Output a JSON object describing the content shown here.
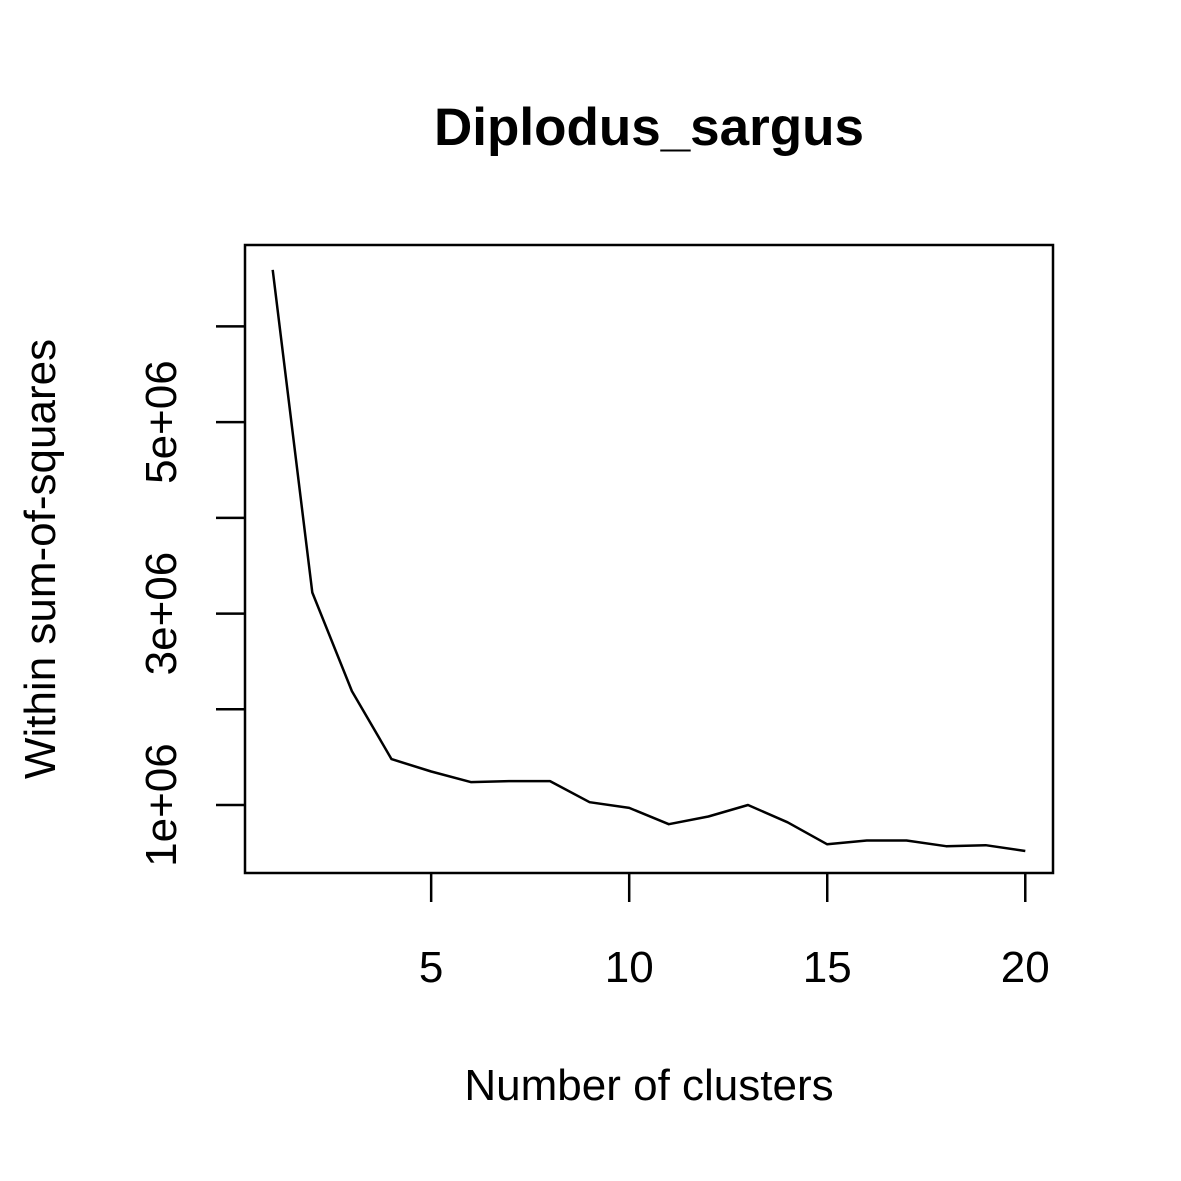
{
  "chart_data": {
    "type": "line",
    "title": "Diplodus_sargus",
    "xlabel": "Number of clusters",
    "ylabel": "Within sum-of-squares",
    "xlim": [
      0.3,
      20.7
    ],
    "ylim": [
      290000,
      6850000
    ],
    "xticks": [
      5,
      10,
      15,
      20
    ],
    "xtick_labels": [
      "5",
      "10",
      "15",
      "20"
    ],
    "yticks": [
      1000000,
      2000000,
      3000000,
      4000000,
      5000000,
      6000000
    ],
    "ytick_labels": [
      "1e+06",
      "",
      "3e+06",
      "",
      "5e+06",
      ""
    ],
    "grid": false,
    "series": [
      {
        "color": "#000000",
        "x": [
          1,
          2,
          3,
          4,
          5,
          6,
          7,
          8,
          9,
          10,
          11,
          12,
          13,
          14,
          15,
          16,
          17,
          18,
          19,
          20
        ],
        "y": [
          6590000,
          3220000,
          2190000,
          1480000,
          1350000,
          1240000,
          1250000,
          1250000,
          1030000,
          970000,
          800000,
          880000,
          1000000,
          820000,
          590000,
          630000,
          630000,
          570000,
          580000,
          520000
        ]
      }
    ]
  }
}
